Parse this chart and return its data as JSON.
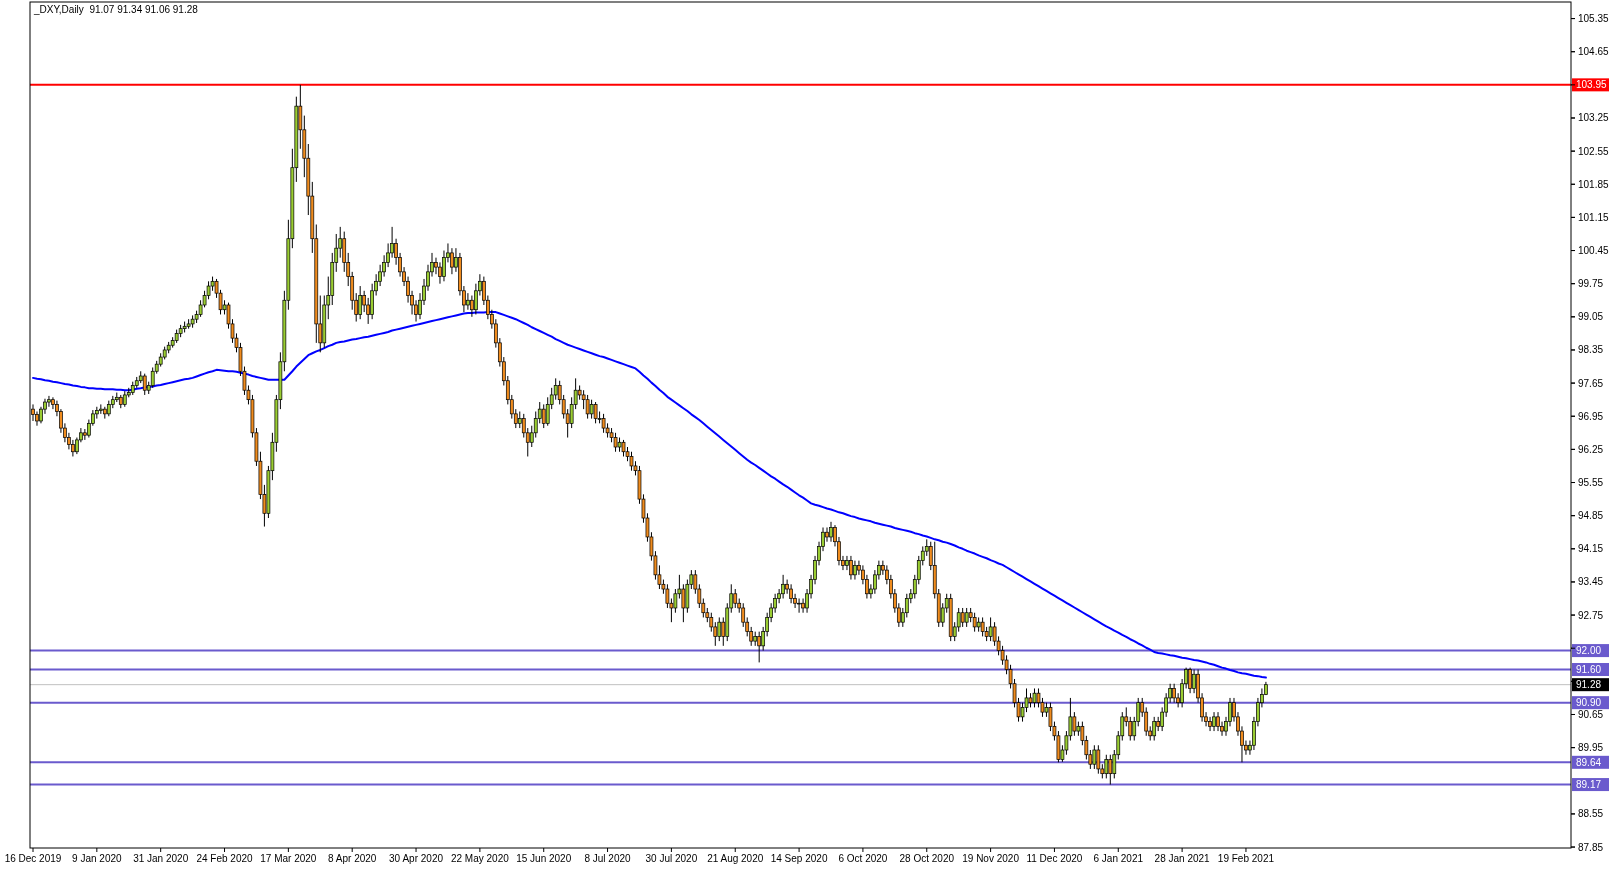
{
  "chart_data": {
    "type": "candlestick",
    "title": "_DXY,Daily  91.07 91.34 91.06 91.28",
    "categories": [
      "16 Dec 2019",
      null,
      null,
      null,
      null,
      null,
      null,
      null,
      null,
      null,
      null,
      null,
      null,
      null,
      null,
      null,
      "9 Jan 2020",
      null,
      null,
      null,
      null,
      null,
      null,
      null,
      null,
      null,
      null,
      null,
      null,
      null,
      null,
      null,
      "31 Jan 2020",
      null,
      null,
      null,
      null,
      null,
      null,
      null,
      null,
      null,
      null,
      null,
      null,
      null,
      null,
      null,
      "24 Feb 2020",
      null,
      null,
      null,
      null,
      null,
      null,
      null,
      null,
      null,
      null,
      null,
      null,
      null,
      null,
      null,
      "17 Mar 2020",
      null,
      null,
      null,
      null,
      null,
      null,
      null,
      null,
      null,
      null,
      null,
      null,
      null,
      null,
      null,
      "8 Apr 2020",
      null,
      null,
      null,
      null,
      null,
      null,
      null,
      null,
      null,
      null,
      null,
      null,
      null,
      null,
      null,
      "30 Apr 2020",
      null,
      null,
      null,
      null,
      null,
      null,
      null,
      null,
      null,
      null,
      null,
      null,
      null,
      null,
      null,
      "22 May 2020",
      null,
      null,
      null,
      null,
      null,
      null,
      null,
      null,
      null,
      null,
      null,
      null,
      null,
      null,
      null,
      "15 Jun 2020",
      null,
      null,
      null,
      null,
      null,
      null,
      null,
      null,
      null,
      null,
      null,
      null,
      null,
      null,
      null,
      "8 Jul 2020",
      null,
      null,
      null,
      null,
      null,
      null,
      null,
      null,
      null,
      null,
      null,
      null,
      null,
      null,
      null,
      "30 Jul 2020",
      null,
      null,
      null,
      null,
      null,
      null,
      null,
      null,
      null,
      null,
      null,
      null,
      null,
      null,
      null,
      "21 Aug 2020",
      null,
      null,
      null,
      null,
      null,
      null,
      null,
      null,
      null,
      null,
      null,
      null,
      null,
      null,
      null,
      "14 Sep 2020",
      null,
      null,
      null,
      null,
      null,
      null,
      null,
      null,
      null,
      null,
      null,
      null,
      null,
      null,
      null,
      "6 Oct 2020",
      null,
      null,
      null,
      null,
      null,
      null,
      null,
      null,
      null,
      null,
      null,
      null,
      null,
      null,
      null,
      "28 Oct 2020",
      null,
      null,
      null,
      null,
      null,
      null,
      null,
      null,
      null,
      null,
      null,
      null,
      null,
      null,
      null,
      "19 Nov 2020",
      null,
      null,
      null,
      null,
      null,
      null,
      null,
      null,
      null,
      null,
      null,
      null,
      null,
      null,
      null,
      "11 Dec 2020",
      null,
      null,
      null,
      null,
      null,
      null,
      null,
      null,
      null,
      null,
      null,
      null,
      null,
      null,
      null,
      "6 Jan 2021",
      null,
      null,
      null,
      null,
      null,
      null,
      null,
      null,
      null,
      null,
      null,
      null,
      null,
      null,
      null,
      "28 Jan 2021",
      null,
      null,
      null,
      null,
      null,
      null,
      null,
      null,
      null,
      null,
      null,
      null,
      null,
      null,
      null,
      "19 Feb 2021",
      null,
      null,
      null,
      null,
      null
    ],
    "ohlc": [
      [
        97.1,
        97.2,
        96.85,
        96.99
      ],
      [
        96.99,
        97.05,
        96.75,
        96.85
      ],
      [
        96.85,
        97.15,
        96.8,
        97.1
      ],
      [
        97.1,
        97.32,
        97.0,
        97.25
      ],
      [
        97.25,
        97.38,
        97.15,
        97.3
      ],
      [
        97.3,
        97.35,
        97.1,
        97.2
      ],
      [
        97.2,
        97.28,
        96.95,
        97.05
      ],
      [
        97.05,
        97.1,
        96.6,
        96.7
      ],
      [
        96.7,
        96.8,
        96.4,
        96.5
      ],
      [
        96.5,
        96.6,
        96.25,
        96.35
      ],
      [
        96.35,
        96.45,
        96.1,
        96.2
      ],
      [
        96.2,
        96.5,
        96.15,
        96.45
      ],
      [
        96.45,
        96.7,
        96.4,
        96.6
      ],
      [
        96.6,
        96.68,
        96.45,
        96.55
      ],
      [
        96.55,
        96.88,
        96.5,
        96.8
      ],
      [
        96.8,
        97.08,
        96.75,
        97.0
      ],
      [
        97.0,
        97.15,
        96.9,
        97.07
      ],
      [
        97.07,
        97.2,
        97.0,
        97.1
      ],
      [
        97.1,
        97.15,
        96.9,
        97.0
      ],
      [
        97.0,
        97.28,
        96.95,
        97.2
      ],
      [
        97.2,
        97.38,
        97.12,
        97.3
      ],
      [
        97.3,
        97.45,
        97.25,
        97.35
      ],
      [
        97.35,
        97.4,
        97.12,
        97.2
      ],
      [
        97.2,
        97.48,
        97.15,
        97.4
      ],
      [
        97.4,
        97.55,
        97.35,
        97.45
      ],
      [
        97.45,
        97.68,
        97.4,
        97.6
      ],
      [
        97.6,
        97.78,
        97.55,
        97.7
      ],
      [
        97.7,
        97.9,
        97.65,
        97.8
      ],
      [
        97.8,
        97.85,
        97.4,
        97.5
      ],
      [
        97.5,
        97.68,
        97.42,
        97.6
      ],
      [
        97.6,
        97.98,
        97.55,
        97.9
      ],
      [
        97.9,
        98.12,
        97.85,
        98.05
      ],
      [
        98.05,
        98.28,
        98.0,
        98.2
      ],
      [
        98.2,
        98.42,
        98.15,
        98.35
      ],
      [
        98.35,
        98.52,
        98.28,
        98.45
      ],
      [
        98.45,
        98.62,
        98.4,
        98.55
      ],
      [
        98.55,
        98.78,
        98.5,
        98.7
      ],
      [
        98.7,
        98.88,
        98.62,
        98.8
      ],
      [
        98.8,
        98.95,
        98.72,
        98.85
      ],
      [
        98.85,
        99.0,
        98.8,
        98.9
      ],
      [
        98.9,
        99.08,
        98.82,
        99.0
      ],
      [
        99.0,
        99.18,
        98.92,
        99.1
      ],
      [
        99.1,
        99.4,
        99.05,
        99.3
      ],
      [
        99.3,
        99.6,
        99.25,
        99.5
      ],
      [
        99.5,
        99.8,
        99.42,
        99.7
      ],
      [
        99.7,
        99.9,
        99.6,
        99.8
      ],
      [
        99.8,
        99.85,
        99.45,
        99.55
      ],
      [
        99.55,
        99.62,
        99.1,
        99.2
      ],
      [
        99.2,
        99.4,
        99.1,
        99.3
      ],
      [
        99.3,
        99.35,
        98.8,
        98.9
      ],
      [
        98.9,
        99.0,
        98.5,
        98.6
      ],
      [
        98.6,
        98.7,
        98.3,
        98.4
      ],
      [
        98.4,
        98.5,
        97.8,
        97.9
      ],
      [
        97.9,
        98.0,
        97.4,
        97.5
      ],
      [
        97.5,
        97.6,
        97.2,
        97.3
      ],
      [
        97.3,
        97.4,
        96.5,
        96.6
      ],
      [
        96.6,
        96.7,
        95.9,
        96.0
      ],
      [
        96.0,
        96.2,
        95.2,
        95.3
      ],
      [
        95.3,
        95.5,
        94.62,
        94.9
      ],
      [
        94.9,
        95.9,
        94.8,
        95.8
      ],
      [
        95.8,
        96.6,
        95.6,
        96.4
      ],
      [
        96.4,
        97.4,
        96.2,
        97.3
      ],
      [
        97.3,
        98.3,
        97.1,
        98.1
      ],
      [
        98.1,
        99.6,
        97.9,
        99.4
      ],
      [
        99.4,
        101.1,
        99.2,
        100.7
      ],
      [
        100.7,
        102.6,
        100.5,
        102.2
      ],
      [
        102.2,
        103.7,
        101.9,
        103.5
      ],
      [
        103.5,
        103.95,
        102.6,
        103.0
      ],
      [
        103.0,
        103.3,
        102.0,
        102.4
      ],
      [
        102.4,
        102.7,
        101.2,
        101.6
      ],
      [
        101.6,
        101.9,
        100.4,
        100.7
      ],
      [
        100.7,
        101.0,
        98.5,
        98.9
      ],
      [
        98.9,
        99.5,
        98.3,
        98.5
      ],
      [
        98.5,
        99.5,
        98.4,
        99.3
      ],
      [
        99.3,
        99.9,
        99.0,
        99.5
      ],
      [
        99.5,
        100.4,
        99.3,
        100.2
      ],
      [
        100.2,
        100.8,
        100.0,
        100.5
      ],
      [
        100.5,
        100.95,
        100.3,
        100.7
      ],
      [
        100.7,
        100.85,
        100.0,
        100.2
      ],
      [
        100.2,
        100.4,
        99.7,
        99.9
      ],
      [
        99.9,
        100.0,
        99.2,
        99.4
      ],
      [
        99.4,
        99.55,
        98.95,
        99.1
      ],
      [
        99.1,
        99.7,
        99.0,
        99.5
      ],
      [
        99.5,
        99.6,
        99.15,
        99.3
      ],
      [
        99.3,
        99.45,
        98.9,
        99.1
      ],
      [
        99.1,
        99.75,
        99.0,
        99.6
      ],
      [
        99.6,
        99.95,
        99.5,
        99.8
      ],
      [
        99.8,
        100.15,
        99.7,
        100.0
      ],
      [
        100.0,
        100.35,
        99.9,
        100.2
      ],
      [
        100.2,
        100.6,
        100.1,
        100.4
      ],
      [
        100.4,
        100.95,
        100.3,
        100.6
      ],
      [
        100.6,
        100.7,
        100.15,
        100.3
      ],
      [
        100.3,
        100.4,
        99.9,
        100.0
      ],
      [
        100.0,
        100.1,
        99.7,
        99.8
      ],
      [
        99.8,
        99.9,
        99.35,
        99.5
      ],
      [
        99.5,
        99.6,
        99.1,
        99.3
      ],
      [
        99.3,
        99.4,
        98.95,
        99.1
      ],
      [
        99.1,
        99.55,
        99.0,
        99.4
      ],
      [
        99.4,
        99.85,
        99.3,
        99.7
      ],
      [
        99.7,
        100.15,
        99.6,
        100.0
      ],
      [
        100.0,
        100.4,
        99.9,
        100.2
      ],
      [
        100.2,
        100.3,
        99.95,
        100.1
      ],
      [
        100.1,
        100.2,
        99.75,
        99.9
      ],
      [
        99.9,
        100.45,
        99.8,
        100.3
      ],
      [
        100.3,
        100.6,
        100.2,
        100.4
      ],
      [
        100.4,
        100.5,
        99.95,
        100.1
      ],
      [
        100.1,
        100.5,
        100.0,
        100.3
      ],
      [
        100.3,
        100.4,
        99.5,
        99.6
      ],
      [
        99.6,
        99.7,
        99.15,
        99.3
      ],
      [
        99.3,
        99.55,
        99.2,
        99.4
      ],
      [
        99.4,
        99.5,
        99.05,
        99.2
      ],
      [
        99.2,
        99.75,
        99.1,
        99.6
      ],
      [
        99.6,
        99.95,
        99.5,
        99.8
      ],
      [
        99.8,
        99.9,
        99.3,
        99.4
      ],
      [
        99.4,
        99.5,
        99.0,
        99.1
      ],
      [
        99.1,
        99.2,
        98.8,
        98.9
      ],
      [
        98.9,
        99.0,
        98.4,
        98.5
      ],
      [
        98.5,
        98.6,
        98.0,
        98.1
      ],
      [
        98.1,
        98.2,
        97.6,
        97.7
      ],
      [
        97.7,
        97.8,
        97.2,
        97.3
      ],
      [
        97.3,
        97.4,
        96.9,
        97.0
      ],
      [
        97.0,
        97.1,
        96.7,
        96.8
      ],
      [
        96.8,
        97.05,
        96.7,
        96.9
      ],
      [
        96.9,
        97.0,
        96.5,
        96.6
      ],
      [
        96.6,
        96.7,
        96.1,
        96.4
      ],
      [
        96.4,
        96.75,
        96.3,
        96.6
      ],
      [
        96.6,
        97.05,
        96.5,
        96.9
      ],
      [
        96.9,
        97.25,
        96.8,
        97.1
      ],
      [
        97.1,
        97.2,
        96.7,
        96.8
      ],
      [
        96.8,
        97.35,
        96.75,
        97.2
      ],
      [
        97.2,
        97.55,
        97.1,
        97.4
      ],
      [
        97.4,
        97.75,
        97.3,
        97.6
      ],
      [
        97.6,
        97.7,
        97.2,
        97.3
      ],
      [
        97.3,
        97.4,
        96.9,
        97.0
      ],
      [
        97.0,
        97.1,
        96.5,
        96.8
      ],
      [
        96.8,
        97.35,
        96.7,
        97.2
      ],
      [
        97.2,
        97.75,
        97.1,
        97.5
      ],
      [
        97.5,
        97.6,
        97.3,
        97.4
      ],
      [
        97.4,
        97.5,
        97.1,
        97.3
      ],
      [
        97.3,
        97.4,
        96.9,
        97.0
      ],
      [
        97.0,
        97.3,
        96.9,
        97.2
      ],
      [
        97.2,
        97.25,
        96.8,
        96.9
      ],
      [
        96.9,
        97.05,
        96.8,
        96.9
      ],
      [
        96.9,
        97.0,
        96.6,
        96.7
      ],
      [
        96.7,
        96.8,
        96.5,
        96.6
      ],
      [
        96.6,
        96.7,
        96.4,
        96.5
      ],
      [
        96.5,
        96.6,
        96.2,
        96.3
      ],
      [
        96.3,
        96.5,
        96.2,
        96.4
      ],
      [
        96.4,
        96.45,
        96.1,
        96.2
      ],
      [
        96.2,
        96.3,
        96.0,
        96.1
      ],
      [
        96.1,
        96.2,
        95.8,
        95.9
      ],
      [
        95.9,
        96.0,
        95.7,
        95.8
      ],
      [
        95.8,
        95.9,
        95.1,
        95.2
      ],
      [
        95.2,
        95.3,
        94.7,
        94.8
      ],
      [
        94.8,
        94.9,
        94.3,
        94.4
      ],
      [
        94.4,
        94.5,
        93.9,
        94.0
      ],
      [
        94.0,
        94.1,
        93.5,
        93.6
      ],
      [
        93.6,
        93.8,
        93.3,
        93.4
      ],
      [
        93.4,
        93.5,
        93.2,
        93.3
      ],
      [
        93.3,
        93.4,
        92.9,
        93.0
      ],
      [
        93.0,
        93.1,
        92.6,
        92.9
      ],
      [
        92.9,
        93.3,
        92.8,
        93.2
      ],
      [
        93.2,
        93.6,
        93.1,
        93.3
      ],
      [
        93.3,
        93.4,
        92.6,
        92.9
      ],
      [
        92.9,
        93.5,
        92.8,
        93.4
      ],
      [
        93.4,
        93.7,
        93.3,
        93.6
      ],
      [
        93.6,
        93.7,
        93.2,
        93.3
      ],
      [
        93.3,
        93.4,
        92.9,
        93.0
      ],
      [
        93.0,
        93.1,
        92.7,
        92.8
      ],
      [
        92.8,
        92.9,
        92.6,
        92.7
      ],
      [
        92.7,
        92.8,
        92.4,
        92.5
      ],
      [
        92.5,
        92.6,
        92.1,
        92.3
      ],
      [
        92.3,
        92.7,
        92.2,
        92.6
      ],
      [
        92.6,
        92.7,
        92.1,
        92.3
      ],
      [
        92.3,
        93.0,
        92.2,
        92.9
      ],
      [
        92.9,
        93.4,
        92.8,
        93.2
      ],
      [
        93.2,
        93.3,
        92.9,
        93.0
      ],
      [
        93.0,
        93.1,
        92.8,
        92.9
      ],
      [
        92.9,
        93.0,
        92.5,
        92.6
      ],
      [
        92.6,
        92.7,
        92.3,
        92.4
      ],
      [
        92.4,
        92.5,
        92.1,
        92.2
      ],
      [
        92.2,
        92.4,
        92.1,
        92.3
      ],
      [
        92.3,
        92.4,
        91.75,
        92.1
      ],
      [
        92.1,
        92.5,
        92.0,
        92.4
      ],
      [
        92.4,
        92.8,
        92.3,
        92.7
      ],
      [
        92.7,
        93.0,
        92.6,
        92.9
      ],
      [
        92.9,
        93.2,
        92.8,
        93.1
      ],
      [
        93.1,
        93.3,
        93.0,
        93.2
      ],
      [
        93.2,
        93.6,
        93.1,
        93.4
      ],
      [
        93.4,
        93.5,
        93.2,
        93.3
      ],
      [
        93.3,
        93.4,
        93.0,
        93.1
      ],
      [
        93.1,
        93.2,
        92.9,
        93.0
      ],
      [
        93.0,
        93.1,
        92.8,
        93.0
      ],
      [
        93.0,
        93.1,
        92.8,
        92.9
      ],
      [
        92.9,
        93.3,
        92.8,
        93.2
      ],
      [
        93.2,
        93.6,
        93.1,
        93.5
      ],
      [
        93.5,
        94.0,
        93.4,
        93.9
      ],
      [
        93.9,
        94.3,
        93.8,
        94.2
      ],
      [
        94.2,
        94.6,
        94.1,
        94.5
      ],
      [
        94.5,
        94.6,
        94.3,
        94.4
      ],
      [
        94.4,
        94.72,
        94.3,
        94.6
      ],
      [
        94.6,
        94.65,
        94.2,
        94.3
      ],
      [
        94.3,
        94.4,
        93.8,
        93.9
      ],
      [
        93.9,
        94.0,
        93.7,
        93.8
      ],
      [
        93.8,
        94.0,
        93.7,
        93.9
      ],
      [
        93.9,
        94.0,
        93.5,
        93.6
      ],
      [
        93.6,
        93.9,
        93.5,
        93.8
      ],
      [
        93.8,
        93.9,
        93.6,
        93.7
      ],
      [
        93.7,
        93.8,
        93.4,
        93.5
      ],
      [
        93.5,
        93.6,
        93.1,
        93.2
      ],
      [
        93.2,
        93.4,
        93.1,
        93.3
      ],
      [
        93.3,
        93.7,
        93.2,
        93.6
      ],
      [
        93.6,
        93.9,
        93.5,
        93.8
      ],
      [
        93.8,
        93.9,
        93.6,
        93.7
      ],
      [
        93.7,
        93.8,
        93.4,
        93.5
      ],
      [
        93.5,
        93.6,
        93.1,
        93.2
      ],
      [
        93.2,
        93.3,
        92.8,
        92.9
      ],
      [
        92.9,
        93.0,
        92.5,
        92.6
      ],
      [
        92.6,
        92.9,
        92.5,
        92.8
      ],
      [
        92.8,
        93.2,
        92.7,
        93.1
      ],
      [
        93.1,
        93.3,
        93.0,
        93.2
      ],
      [
        93.2,
        93.6,
        93.1,
        93.5
      ],
      [
        93.5,
        94.0,
        93.4,
        93.9
      ],
      [
        93.9,
        94.2,
        93.8,
        94.1
      ],
      [
        94.1,
        94.35,
        94.0,
        94.2
      ],
      [
        94.2,
        94.3,
        93.7,
        93.8
      ],
      [
        93.8,
        94.3,
        93.1,
        93.2
      ],
      [
        93.2,
        93.3,
        92.5,
        92.6
      ],
      [
        92.6,
        93.0,
        92.5,
        92.9
      ],
      [
        92.9,
        93.2,
        92.8,
        93.1
      ],
      [
        93.1,
        93.2,
        92.2,
        92.3
      ],
      [
        92.3,
        92.6,
        92.2,
        92.5
      ],
      [
        92.5,
        92.9,
        92.4,
        92.8
      ],
      [
        92.8,
        92.9,
        92.5,
        92.6
      ],
      [
        92.6,
        92.9,
        92.5,
        92.8
      ],
      [
        92.8,
        92.9,
        92.6,
        92.7
      ],
      [
        92.7,
        92.8,
        92.4,
        92.5
      ],
      [
        92.5,
        92.7,
        92.4,
        92.6
      ],
      [
        92.6,
        92.7,
        92.3,
        92.4
      ],
      [
        92.4,
        92.5,
        92.2,
        92.3
      ],
      [
        92.3,
        92.7,
        92.2,
        92.5
      ],
      [
        92.5,
        92.6,
        92.1,
        92.2
      ],
      [
        92.2,
        92.3,
        91.9,
        92.0
      ],
      [
        92.0,
        92.1,
        91.7,
        91.8
      ],
      [
        91.8,
        91.9,
        91.5,
        91.6
      ],
      [
        91.6,
        91.7,
        91.2,
        91.3
      ],
      [
        91.3,
        91.4,
        90.8,
        90.9
      ],
      [
        90.9,
        91.0,
        90.5,
        90.6
      ],
      [
        90.6,
        90.9,
        90.5,
        90.8
      ],
      [
        90.8,
        91.2,
        90.7,
        91.0
      ],
      [
        91.0,
        91.1,
        90.8,
        90.9
      ],
      [
        90.9,
        91.2,
        90.8,
        91.1
      ],
      [
        91.1,
        91.2,
        90.8,
        90.9
      ],
      [
        90.9,
        91.0,
        90.6,
        90.7
      ],
      [
        90.7,
        90.9,
        90.6,
        90.8
      ],
      [
        90.8,
        90.9,
        90.3,
        90.4
      ],
      [
        90.4,
        90.5,
        90.1,
        90.2
      ],
      [
        90.2,
        90.3,
        89.64,
        89.7
      ],
      [
        89.7,
        90.0,
        89.65,
        89.9
      ],
      [
        89.9,
        90.3,
        89.8,
        90.2
      ],
      [
        90.2,
        91.0,
        90.1,
        90.6
      ],
      [
        90.6,
        90.7,
        90.2,
        90.3
      ],
      [
        90.3,
        90.5,
        90.2,
        90.4
      ],
      [
        90.4,
        90.5,
        90.0,
        90.1
      ],
      [
        90.1,
        90.2,
        89.7,
        89.8
      ],
      [
        89.8,
        89.9,
        89.5,
        89.6
      ],
      [
        89.6,
        90.0,
        89.5,
        89.9
      ],
      [
        89.9,
        90.0,
        89.4,
        89.5
      ],
      [
        89.5,
        89.6,
        89.3,
        89.4
      ],
      [
        89.4,
        89.8,
        89.3,
        89.7
      ],
      [
        89.7,
        89.8,
        89.17,
        89.4
      ],
      [
        89.4,
        89.9,
        89.3,
        89.8
      ],
      [
        89.8,
        90.3,
        89.7,
        90.2
      ],
      [
        90.2,
        90.7,
        90.1,
        90.6
      ],
      [
        90.6,
        90.8,
        90.4,
        90.5
      ],
      [
        90.5,
        90.6,
        90.1,
        90.2
      ],
      [
        90.2,
        90.6,
        90.1,
        90.5
      ],
      [
        90.5,
        91.0,
        90.4,
        90.9
      ],
      [
        90.9,
        91.0,
        90.6,
        90.7
      ],
      [
        90.7,
        90.8,
        90.2,
        90.3
      ],
      [
        90.3,
        90.4,
        90.1,
        90.2
      ],
      [
        90.2,
        90.6,
        90.1,
        90.5
      ],
      [
        90.5,
        90.6,
        90.3,
        90.4
      ],
      [
        90.4,
        90.8,
        90.3,
        90.7
      ],
      [
        90.7,
        91.1,
        90.6,
        91.0
      ],
      [
        91.0,
        91.3,
        90.9,
        91.2
      ],
      [
        91.2,
        91.3,
        90.9,
        91.0
      ],
      [
        91.0,
        91.1,
        90.8,
        90.9
      ],
      [
        90.9,
        91.4,
        90.8,
        91.3
      ],
      [
        91.3,
        91.64,
        91.2,
        91.6
      ],
      [
        91.6,
        91.64,
        91.1,
        91.2
      ],
      [
        91.2,
        91.6,
        91.1,
        91.5
      ],
      [
        91.5,
        91.6,
        90.9,
        91.0
      ],
      [
        91.0,
        91.1,
        90.5,
        90.6
      ],
      [
        90.6,
        90.7,
        90.4,
        90.5
      ],
      [
        90.5,
        90.6,
        90.3,
        90.4
      ],
      [
        90.4,
        90.7,
        90.3,
        90.6
      ],
      [
        90.6,
        90.7,
        90.3,
        90.4
      ],
      [
        90.4,
        90.5,
        90.2,
        90.3
      ],
      [
        90.3,
        90.6,
        90.2,
        90.5
      ],
      [
        90.5,
        91.0,
        90.4,
        90.9
      ],
      [
        90.9,
        91.0,
        90.5,
        90.6
      ],
      [
        90.6,
        90.7,
        90.2,
        90.3
      ],
      [
        90.3,
        90.4,
        89.64,
        90.0
      ],
      [
        90.0,
        90.1,
        89.8,
        89.9
      ],
      [
        89.9,
        90.1,
        89.8,
        90.0
      ],
      [
        90.0,
        90.6,
        89.9,
        90.5
      ],
      [
        90.5,
        91.0,
        90.4,
        90.9
      ],
      [
        90.9,
        91.2,
        90.8,
        91.07
      ],
      [
        91.07,
        91.34,
        91.06,
        91.28
      ]
    ],
    "series": [
      {
        "type": "line",
        "color": "#0000ff",
        "values": [
          97.76,
          97.74,
          97.73,
          97.71,
          97.7,
          97.68,
          97.67,
          97.65,
          97.63,
          97.62,
          97.6,
          97.59,
          97.57,
          97.56,
          97.54,
          97.54,
          97.53,
          97.53,
          97.52,
          97.52,
          97.52,
          97.51,
          97.51,
          97.5,
          97.5,
          97.51,
          97.53,
          97.54,
          97.56,
          97.57,
          97.58,
          97.6,
          97.61,
          97.63,
          97.65,
          97.67,
          97.69,
          97.71,
          97.73,
          97.74,
          97.76,
          97.79,
          97.82,
          97.85,
          97.88,
          97.9,
          97.93,
          97.92,
          97.91,
          97.9,
          97.9,
          97.89,
          97.87,
          97.85,
          97.83,
          97.8,
          97.78,
          97.76,
          97.74,
          97.72,
          97.72,
          97.72,
          97.72,
          97.72,
          97.81,
          97.9,
          98.0,
          98.08,
          98.16,
          98.24,
          98.28,
          98.32,
          98.35,
          98.39,
          98.43,
          98.46,
          98.5,
          98.52,
          98.53,
          98.55,
          98.57,
          98.58,
          98.6,
          98.62,
          98.63,
          98.65,
          98.67,
          98.69,
          98.71,
          98.73,
          98.76,
          98.78,
          98.8,
          98.82,
          98.84,
          98.86,
          98.88,
          98.9,
          98.92,
          98.94,
          98.96,
          98.98,
          99.0,
          99.02,
          99.04,
          99.06,
          99.08,
          99.1,
          99.12,
          99.13,
          99.13,
          99.14,
          99.14,
          99.14,
          99.15,
          99.15,
          99.15,
          99.12,
          99.09,
          99.06,
          99.03,
          99.0,
          98.96,
          98.92,
          98.88,
          98.83,
          98.79,
          98.75,
          98.71,
          98.67,
          98.63,
          98.58,
          98.54,
          98.5,
          98.46,
          98.43,
          98.4,
          98.37,
          98.34,
          98.31,
          98.28,
          98.25,
          98.22,
          98.2,
          98.17,
          98.14,
          98.11,
          98.08,
          98.05,
          98.02,
          97.99,
          97.96,
          97.89,
          97.81,
          97.74,
          97.66,
          97.59,
          97.51,
          97.44,
          97.36,
          97.3,
          97.24,
          97.18,
          97.12,
          97.06,
          96.99,
          96.93,
          96.87,
          96.8,
          96.73,
          96.66,
          96.59,
          96.52,
          96.45,
          96.38,
          96.31,
          96.24,
          96.17,
          96.1,
          96.03,
          95.97,
          95.92,
          95.86,
          95.8,
          95.74,
          95.68,
          95.63,
          95.57,
          95.51,
          95.46,
          95.4,
          95.34,
          95.28,
          95.23,
          95.17,
          95.11,
          95.08,
          95.06,
          95.03,
          95.0,
          94.98,
          94.95,
          94.92,
          94.9,
          94.87,
          94.84,
          94.82,
          94.79,
          94.77,
          94.75,
          94.73,
          94.7,
          94.68,
          94.66,
          94.64,
          94.62,
          94.59,
          94.57,
          94.55,
          94.53,
          94.51,
          94.48,
          94.46,
          94.43,
          94.41,
          94.38,
          94.35,
          94.33,
          94.3,
          94.28,
          94.25,
          94.22,
          94.18,
          94.15,
          94.11,
          94.08,
          94.05,
          94.01,
          93.98,
          93.95,
          93.91,
          93.88,
          93.84,
          93.81,
          93.76,
          93.71,
          93.66,
          93.61,
          93.56,
          93.51,
          93.46,
          93.41,
          93.36,
          93.31,
          93.26,
          93.21,
          93.16,
          93.11,
          93.06,
          93.01,
          92.96,
          92.91,
          92.86,
          92.81,
          92.76,
          92.71,
          92.66,
          92.61,
          92.56,
          92.51,
          92.47,
          92.42,
          92.38,
          92.33,
          92.29,
          92.24,
          92.2,
          92.15,
          92.11,
          92.06,
          92.02,
          91.97,
          91.95,
          91.94,
          91.92,
          91.9,
          91.89,
          91.87,
          91.85,
          91.84,
          91.82,
          91.8,
          91.79,
          91.77,
          91.75,
          91.72,
          91.7,
          91.67,
          91.64,
          91.62,
          91.59,
          91.57,
          91.54,
          91.52,
          91.51,
          91.49,
          91.47,
          91.46,
          91.44,
          91.43
        ]
      }
    ],
    "ylim": [
      87.83,
      105.7
    ],
    "yticks": [
      87.85,
      88.55,
      89.95,
      90.65,
      {
        "value": 91.35,
        "label": null
      },
      {
        "value": 92.05,
        "label": null
      },
      92.75,
      93.45,
      94.15,
      94.85,
      95.55,
      96.25,
      96.95,
      97.65,
      98.35,
      99.05,
      99.75,
      100.45,
      101.15,
      101.85,
      102.55,
      103.25,
      103.95,
      104.65,
      105.35
    ],
    "ref_lines": [
      {
        "axis": "y",
        "value": 103.95,
        "label": "103.95",
        "color": "#ff0000"
      },
      {
        "axis": "y",
        "value": 92.0,
        "label": "92.00",
        "color": "#6a5acd"
      },
      {
        "axis": "y",
        "value": 91.6,
        "label": "91.60",
        "color": "#6a5acd"
      },
      {
        "axis": "y",
        "value": 91.28,
        "label": "91.28",
        "color": "#c0c0c0"
      },
      {
        "axis": "y",
        "value": 90.9,
        "label": "90.90",
        "color": "#6a5acd"
      },
      {
        "axis": "y",
        "value": 89.64,
        "label": "89.64",
        "color": "#6a5acd"
      },
      {
        "axis": "y",
        "value": 89.17,
        "label": "89.17",
        "color": "#6a5acd"
      }
    ]
  }
}
